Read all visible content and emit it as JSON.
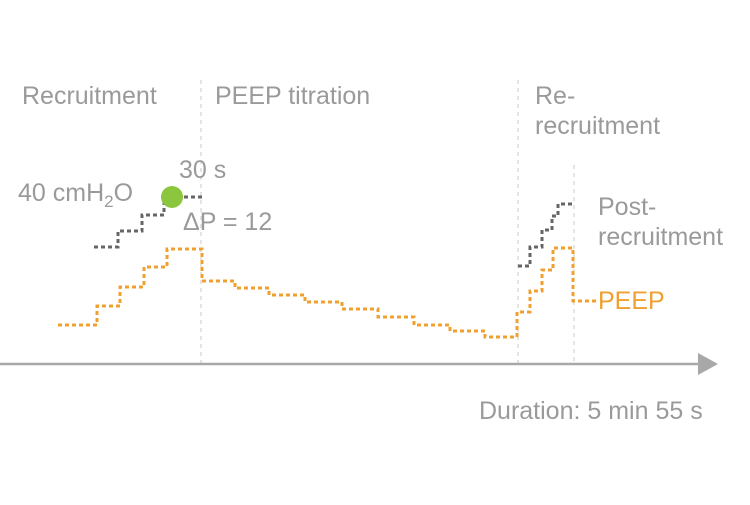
{
  "phases": {
    "recruitment": "Recruitment",
    "peep_titration": "PEEP titration",
    "re_recruitment_line1": "Re-",
    "re_recruitment_line2": "recruitment"
  },
  "annotations": {
    "pressure": "40 cmH",
    "pressure_sub": "2",
    "pressure_tail": "O",
    "time": "30 s",
    "delta_p": "ΔP = 12"
  },
  "legend": {
    "post_recruitment_line1": "Post-",
    "post_recruitment_line2": "recruitment",
    "peep": "PEEP"
  },
  "axis": {
    "duration": "Duration: 5 min 55 s"
  },
  "colors": {
    "peep": "#f0a030",
    "post_recruitment": "#666666",
    "marker": "#8cc63e",
    "text": "#9a9a9a",
    "axis": "#a8a8a8",
    "divider": "#c8c8c8"
  }
}
